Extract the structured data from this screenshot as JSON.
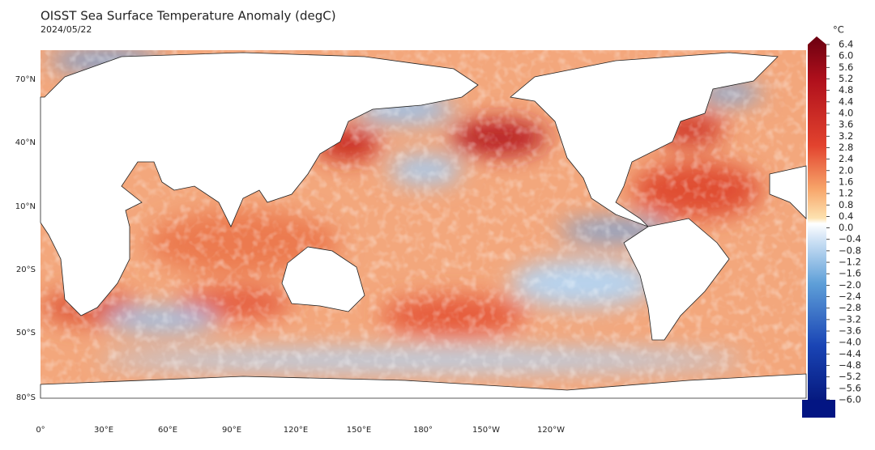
{
  "header": {
    "title": "OISST Sea Surface Temperature Anomaly (degC)",
    "date": "2024/05/22"
  },
  "map": {
    "lat_labels": [
      "70°N",
      "40°N",
      "10°N",
      "20°S",
      "50°S",
      "80°S"
    ],
    "lon_labels": [
      "0°",
      "30°E",
      "60°E",
      "90°E",
      "120°E",
      "150°E",
      "180°",
      "150°W",
      "120°W"
    ]
  },
  "colorbar": {
    "unit": "°C",
    "lim": [
      -6,
      6.4
    ],
    "ticks": [
      6.4,
      {
        "value": 6,
        "label": "6.0"
      },
      5.6,
      5.2,
      4.8,
      4.4,
      {
        "value": 4,
        "label": "4.0"
      },
      3.6,
      3.2,
      2.8,
      2.4,
      {
        "value": 2,
        "label": "2.0"
      },
      1.6,
      1.2,
      0.8,
      0.4,
      {
        "value": 0,
        "label": "0.0"
      },
      {
        "value": -0.4,
        "label": "−0.4"
      },
      {
        "value": -0.8,
        "label": "−0.8"
      },
      {
        "value": -1.2,
        "label": "−1.2"
      },
      {
        "value": -1.6,
        "label": "−1.6"
      },
      {
        "value": -2,
        "label": "−2.0"
      },
      {
        "value": -2.4,
        "label": "−2.4"
      },
      {
        "value": -2.8,
        "label": "−2.8"
      },
      {
        "value": -3.2,
        "label": "−3.2"
      },
      {
        "value": -3.6,
        "label": "−3.6"
      },
      {
        "value": -4,
        "label": "−4.0"
      },
      {
        "value": -4.4,
        "label": "−4.4"
      },
      {
        "value": -4.8,
        "label": "−4.8"
      },
      {
        "value": -5.2,
        "label": "−5.2"
      },
      {
        "value": -5.6,
        "label": "−5.6"
      },
      {
        "value": -6,
        "label": "−6.0"
      }
    ]
  }
}
